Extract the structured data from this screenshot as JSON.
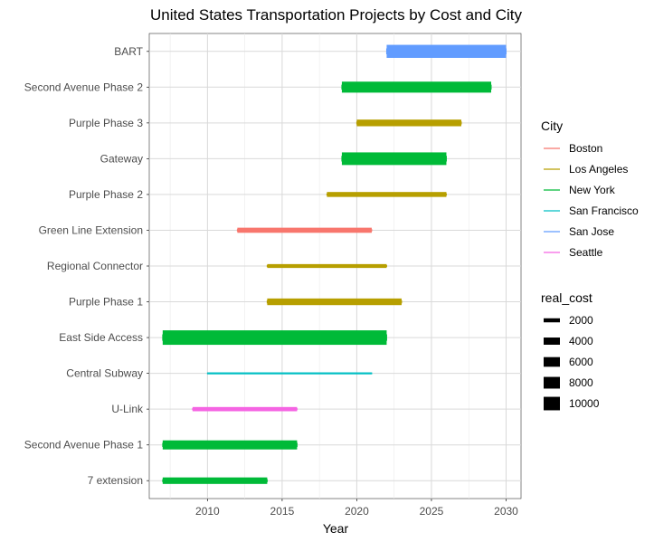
{
  "chart_data": {
    "type": "gantt",
    "title": "United States Transportation Projects by Cost and City",
    "xlabel": "Year",
    "ylabel": "",
    "xlim": [
      2006.1,
      2031.0
    ],
    "xticks": [
      2010,
      2015,
      2020,
      2025,
      2030
    ],
    "grid": true,
    "legend_position": "right",
    "categories": [
      "BART",
      "Second Avenue Phase 2",
      "Purple Phase 3",
      "Gateway",
      "Purple Phase 2",
      "Green Line Extension",
      "Regional Connector",
      "Purple Phase 1",
      "East Side Access",
      "Central Subway",
      "U-Link",
      "Second Avenue Phase 1",
      "7 extension"
    ],
    "projects": [
      {
        "name": "BART",
        "city": "San Jose",
        "start": 2022.0,
        "end": 2030.0,
        "real_cost": 9500
      },
      {
        "name": "Second Avenue Phase 2",
        "city": "New York",
        "start": 2019.0,
        "end": 2029.0,
        "real_cost": 7300
      },
      {
        "name": "Purple Phase 3",
        "city": "Los Angeles",
        "start": 2020.0,
        "end": 2027.0,
        "real_cost": 3600
      },
      {
        "name": "Gateway",
        "city": "New York",
        "start": 2019.0,
        "end": 2026.0,
        "real_cost": 9000
      },
      {
        "name": "Purple Phase 2",
        "city": "Los Angeles",
        "start": 2018.0,
        "end": 2026.0,
        "real_cost": 2500
      },
      {
        "name": "Green Line Extension",
        "city": "Boston",
        "start": 2012.0,
        "end": 2021.0,
        "real_cost": 2600
      },
      {
        "name": "Regional Connector",
        "city": "Los Angeles",
        "start": 2014.0,
        "end": 2022.0,
        "real_cost": 1900
      },
      {
        "name": "Purple Phase 1",
        "city": "Los Angeles",
        "start": 2014.0,
        "end": 2023.0,
        "real_cost": 3600
      },
      {
        "name": "East Side Access",
        "city": "New York",
        "start": 2007.0,
        "end": 2022.0,
        "real_cost": 11200
      },
      {
        "name": "Central Subway",
        "city": "San Francisco",
        "start": 2010.0,
        "end": 2021.0,
        "real_cost": 1000
      },
      {
        "name": "U-Link",
        "city": "Seattle",
        "start": 2009.0,
        "end": 2016.0,
        "real_cost": 2100
      },
      {
        "name": "Second Avenue Phase 1",
        "city": "New York",
        "start": 2007.0,
        "end": 2016.0,
        "real_cost": 5500
      },
      {
        "name": "7 extension",
        "city": "New York",
        "start": 2007.0,
        "end": 2014.0,
        "real_cost": 3500
      }
    ],
    "legend_color": {
      "title": "City",
      "entries": [
        {
          "label": "Boston",
          "color": "#F8766D"
        },
        {
          "label": "Los Angeles",
          "color": "#B79F00"
        },
        {
          "label": "New York",
          "color": "#00BA38"
        },
        {
          "label": "San Francisco",
          "color": "#00BFC4"
        },
        {
          "label": "San Jose",
          "color": "#619CFF"
        },
        {
          "label": "Seattle",
          "color": "#F564E3"
        }
      ]
    },
    "legend_size": {
      "title": "real_cost",
      "entries": [
        {
          "label": "2000",
          "value": 2000
        },
        {
          "label": "4000",
          "value": 4000
        },
        {
          "label": "6000",
          "value": 6000
        },
        {
          "label": "8000",
          "value": 8000
        },
        {
          "label": "10000",
          "value": 10000
        }
      ]
    }
  }
}
